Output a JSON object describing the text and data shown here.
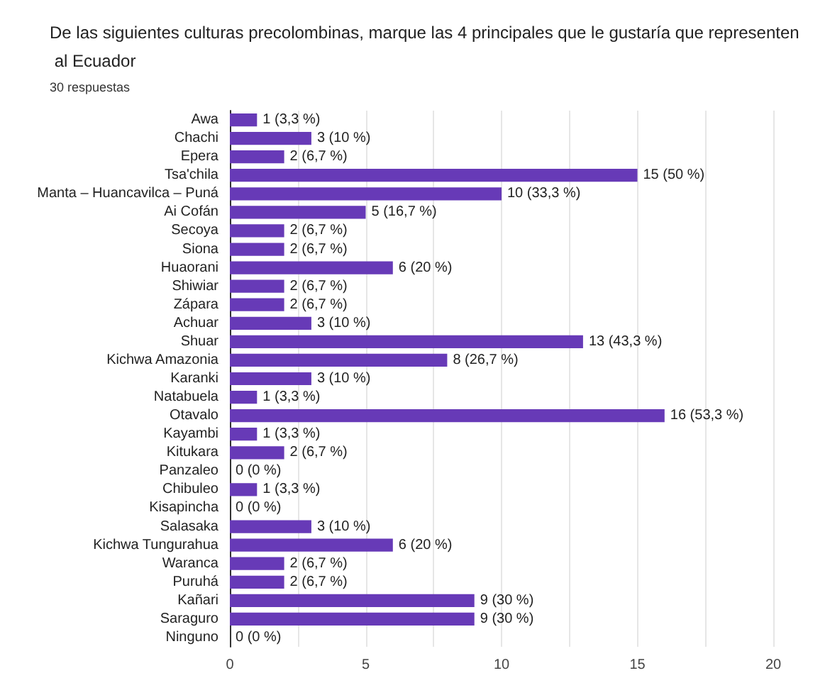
{
  "chart_data": {
    "type": "bar",
    "orientation": "horizontal",
    "title": "De las siguientes culturas precolombinas, marque las 4 principales que le gustaría que representen al Ecuador",
    "subtitle": "30 respuestas",
    "categories": [
      "Awa",
      "Chachi",
      "Epera",
      "Tsa'chila",
      "Manta – Huancavilca – Puná",
      "Ai Cofán",
      "Secoya",
      "Siona",
      "Huaorani",
      "Shiwiar",
      "Zápara",
      "Achuar",
      "Shuar",
      "Kichwa Amazonia",
      "Karanki",
      "Natabuela",
      "Otavalo",
      "Kayambi",
      "Kitukara",
      "Panzaleo",
      "Chibuleo",
      "Kisapincha",
      "Salasaka",
      "Kichwa Tungurahua",
      "Waranca",
      "Puruhá",
      "Kañari",
      "Saraguro",
      "Ninguno"
    ],
    "values": [
      1,
      3,
      2,
      15,
      10,
      5,
      2,
      2,
      6,
      2,
      2,
      3,
      13,
      8,
      3,
      1,
      16,
      1,
      2,
      0,
      1,
      0,
      3,
      6,
      2,
      2,
      9,
      9,
      0
    ],
    "value_labels": [
      "1 (3,3 %)",
      "3 (10 %)",
      "2 (6,7 %)",
      "15 (50 %)",
      "10 (33,3 %)",
      "5 (16,7 %)",
      "2 (6,7 %)",
      "2 (6,7 %)",
      "6 (20 %)",
      "2 (6,7 %)",
      "2 (6,7 %)",
      "3 (10 %)",
      "13 (43,3 %)",
      "8 (26,7 %)",
      "3 (10 %)",
      "1 (3,3 %)",
      "16 (53,3 %)",
      "1 (3,3 %)",
      "2 (6,7 %)",
      "0 (0 %)",
      "1 (3,3 %)",
      "0 (0 %)",
      "3 (10 %)",
      "6 (20 %)",
      "2 (6,7 %)",
      "2 (6,7 %)",
      "9 (30 %)",
      "9 (30 %)",
      "0 (0 %)"
    ],
    "color": "#673ab7",
    "xlim": [
      0,
      20
    ],
    "xticks": [
      0,
      {
        "value": 2.5,
        "label": null
      },
      5,
      {
        "value": 7.5,
        "label": null
      },
      10,
      {
        "value": 12.5,
        "label": null
      },
      15,
      {
        "value": 17.5,
        "label": null
      },
      20
    ],
    "grid": "x"
  }
}
